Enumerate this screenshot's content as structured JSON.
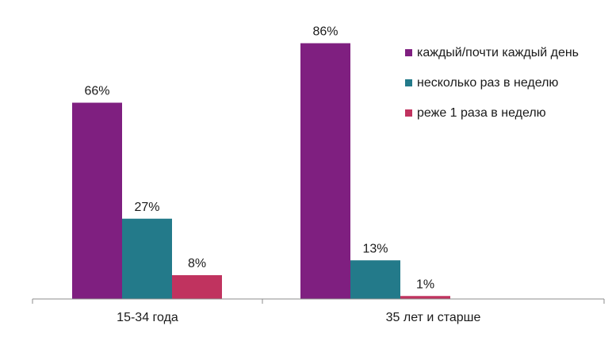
{
  "chart_data": {
    "type": "bar",
    "categories": [
      "15-34 года",
      "35 лет и старше"
    ],
    "series": [
      {
        "name": "каждый/почти каждый день",
        "values": [
          66,
          86
        ],
        "labels": [
          "66%",
          "86%"
        ],
        "color": "#7f1f80"
      },
      {
        "name": "несколько раз в неделю",
        "values": [
          27,
          13
        ],
        "labels": [
          "27%",
          "13%"
        ],
        "color": "#237a8a"
      },
      {
        "name": "реже 1 раза в неделю",
        "values": [
          8,
          1
        ],
        "labels": [
          "8%",
          "1%"
        ],
        "color": "#c0335f"
      }
    ],
    "ylim": [
      0,
      100
    ],
    "grid": false,
    "legend_position": "top-right"
  }
}
